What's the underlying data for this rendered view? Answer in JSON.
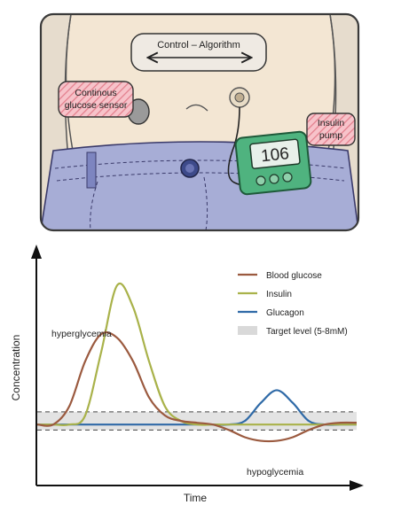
{
  "illustration": {
    "control_label": "Control – Algorithm",
    "sensor_label_line1": "Continous",
    "sensor_label_line2": "glucose sensor",
    "pump_label_line1": "Insulin",
    "pump_label_line2": "pump",
    "pump_display": "106",
    "colors": {
      "skin": "#f3e6d3",
      "jeans": "#a7add6",
      "pump": "#4fb37f",
      "label_hatch": "#f2a0ab",
      "frame": "#3a3a3a"
    }
  },
  "chart_data": {
    "type": "line",
    "xlabel": "Time",
    "ylabel": "Concentration",
    "annotations": {
      "high": "hyperglycemia",
      "low": "hypoglycemia"
    },
    "legend": [
      {
        "name": "Blood glucose",
        "color": "#9b5a3f"
      },
      {
        "name": "Insulin",
        "color": "#a9b24a"
      },
      {
        "name": "Glucagon",
        "color": "#2f6aa7"
      },
      {
        "name": "Target level (5-8mM)",
        "color": "#d9d9d9"
      }
    ],
    "legend_placement": "top-right",
    "target_band": [
      0.17,
      0.27
    ],
    "series": [
      {
        "name": "Blood glucose",
        "color": "#9b5a3f",
        "x": [
          0,
          0.05,
          0.1,
          0.15,
          0.2,
          0.25,
          0.3,
          0.35,
          0.4,
          0.45,
          0.5,
          0.55,
          0.6,
          0.65,
          0.7,
          0.75,
          0.8,
          0.85,
          0.9,
          0.95,
          1
        ],
        "y": [
          0.2,
          0.2,
          0.3,
          0.55,
          0.7,
          0.68,
          0.55,
          0.35,
          0.25,
          0.22,
          0.21,
          0.2,
          0.17,
          0.13,
          0.11,
          0.11,
          0.13,
          0.17,
          0.2,
          0.21,
          0.21
        ]
      },
      {
        "name": "Insulin",
        "color": "#a9b24a",
        "x": [
          0,
          0.05,
          0.1,
          0.15,
          0.2,
          0.25,
          0.3,
          0.35,
          0.4,
          0.45,
          0.5,
          0.55,
          0.6,
          0.65,
          0.7,
          0.75,
          0.8,
          0.85,
          0.9,
          0.95,
          1
        ],
        "y": [
          0.2,
          0.2,
          0.2,
          0.25,
          0.6,
          0.97,
          0.85,
          0.55,
          0.3,
          0.22,
          0.2,
          0.2,
          0.2,
          0.2,
          0.2,
          0.2,
          0.2,
          0.2,
          0.2,
          0.2,
          0.2
        ]
      },
      {
        "name": "Glucagon",
        "color": "#2f6aa7",
        "x": [
          0,
          0.05,
          0.1,
          0.15,
          0.2,
          0.25,
          0.3,
          0.35,
          0.4,
          0.45,
          0.5,
          0.55,
          0.6,
          0.65,
          0.7,
          0.75,
          0.8,
          0.85,
          0.9,
          0.95,
          1
        ],
        "y": [
          0.2,
          0.2,
          0.2,
          0.2,
          0.2,
          0.2,
          0.2,
          0.2,
          0.2,
          0.2,
          0.2,
          0.2,
          0.2,
          0.22,
          0.32,
          0.39,
          0.32,
          0.22,
          0.2,
          0.2,
          0.2
        ]
      }
    ]
  }
}
